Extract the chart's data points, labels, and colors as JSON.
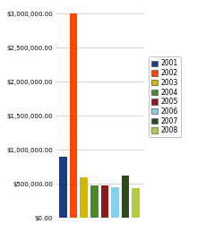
{
  "years": [
    "2001",
    "2002",
    "2003",
    "2004",
    "2005",
    "2006",
    "2007",
    "2008"
  ],
  "values": [
    900000,
    3000000,
    600000,
    475000,
    480000,
    450000,
    620000,
    440000
  ],
  "bar_colors": [
    "#1a3d7c",
    "#ff4500",
    "#d4b800",
    "#4a8a2e",
    "#8b1a1a",
    "#87ceeb",
    "#2d4a1e",
    "#b5c93e"
  ],
  "ylim": [
    0,
    3100000
  ],
  "yticks": [
    0,
    500000,
    1000000,
    1500000,
    2000000,
    2500000,
    3000000
  ],
  "background_color": "#ffffff",
  "grid_color": "#d0d0d0",
  "legend_labels": [
    "2001",
    "2002",
    "2003",
    "2004",
    "2005",
    "2006",
    "2007",
    "2008"
  ]
}
